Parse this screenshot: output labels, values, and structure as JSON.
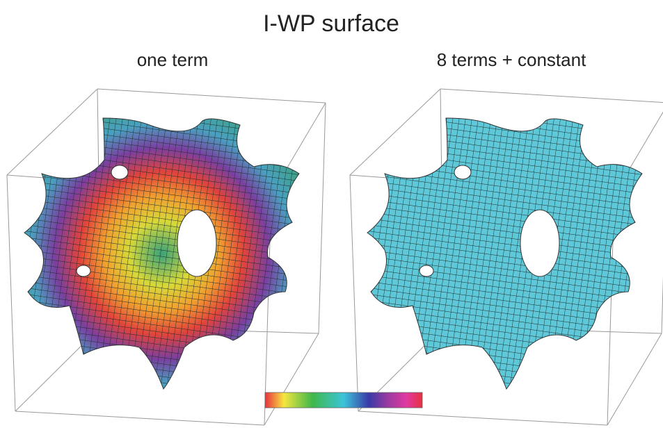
{
  "header": {
    "title": "I-WP surface"
  },
  "panels": [
    {
      "label": "one term"
    },
    {
      "label": "8 terms + constant"
    }
  ]
}
